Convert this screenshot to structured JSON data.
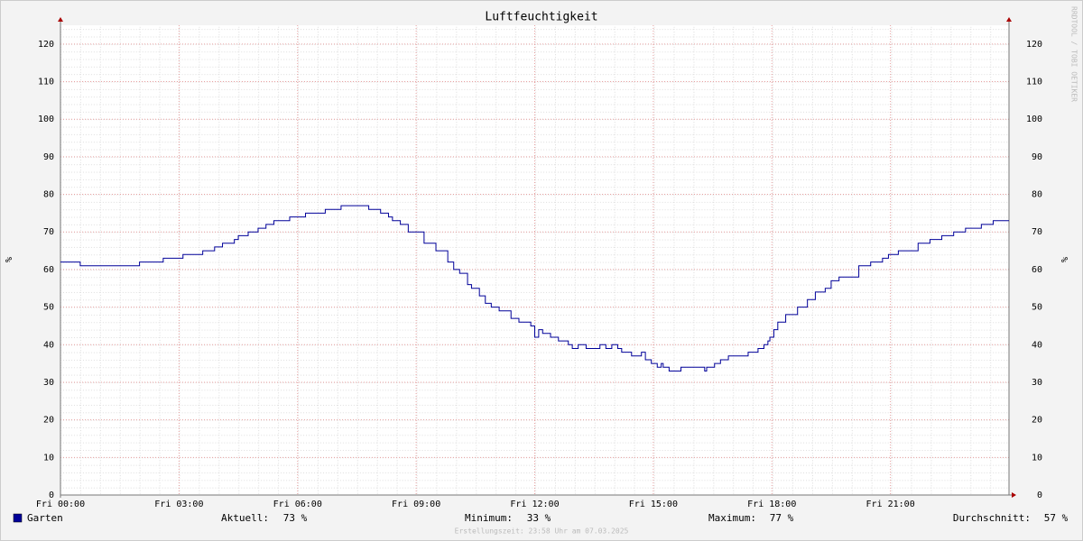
{
  "chart_data": {
    "type": "line",
    "title": "Luftfeuchtigkeit",
    "y_label": "%",
    "watermark": "RRDTOOL / TOBI OETIKER",
    "footer": "Erstellungszeit: 23:58 Uhr am 07.03.2025",
    "series": [
      {
        "name": "Garten",
        "color": "#000099",
        "x": [
          0,
          0.5,
          2.0,
          2.6,
          3.1,
          3.6,
          3.9,
          4.1,
          4.4,
          4.5,
          4.75,
          5.0,
          5.2,
          5.4,
          5.8,
          6.2,
          6.7,
          7.1,
          7.8,
          8.1,
          8.3,
          8.4,
          8.6,
          8.8,
          9.2,
          9.5,
          9.8,
          9.95,
          10.1,
          10.3,
          10.4,
          10.6,
          10.75,
          10.9,
          11.1,
          11.4,
          11.6,
          11.9,
          12.0,
          12.1,
          12.2,
          12.4,
          12.6,
          12.85,
          12.95,
          13.1,
          13.3,
          13.65,
          13.8,
          13.95,
          14.1,
          14.2,
          14.45,
          14.7,
          14.8,
          14.95,
          15.1,
          15.2,
          15.25,
          15.4,
          15.7,
          16.3,
          16.35,
          16.55,
          16.7,
          16.9,
          17.4,
          17.65,
          17.8,
          17.9,
          17.95,
          18.05,
          18.15,
          18.35,
          18.65,
          18.9,
          19.1,
          19.35,
          19.5,
          19.7,
          20.2,
          20.5,
          20.8,
          20.95,
          21.2,
          21.7,
          22.0,
          22.3,
          22.6,
          22.9,
          23.3,
          23.6,
          24
        ],
        "values": [
          62,
          61,
          62,
          63,
          64,
          65,
          66,
          67,
          68,
          69,
          70,
          71,
          72,
          73,
          74,
          75,
          76,
          77,
          76,
          75,
          74,
          73,
          72,
          70,
          67,
          65,
          62,
          60,
          59,
          56,
          55,
          53,
          51,
          50,
          49,
          47,
          46,
          45,
          42,
          44,
          43,
          42,
          41,
          40,
          39,
          40,
          39,
          40,
          39,
          40,
          39,
          38,
          37,
          38,
          36,
          35,
          34,
          35,
          34,
          33,
          34,
          33,
          34,
          35,
          36,
          37,
          38,
          39,
          40,
          41,
          42,
          44,
          46,
          48,
          50,
          52,
          54,
          55,
          57,
          58,
          61,
          62,
          63,
          64,
          65,
          67,
          68,
          69,
          70,
          71,
          72,
          73,
          73
        ]
      }
    ],
    "stats": [
      {
        "label": "Aktuell:",
        "value": "73 %"
      },
      {
        "label": "Minimum:",
        "value": "33 %"
      },
      {
        "label": "Maximum:",
        "value": "77 %"
      },
      {
        "label": "Durchschnitt:",
        "value": "57 %"
      }
    ],
    "xlim": [
      0,
      24
    ],
    "xticks": [
      {
        "value": 0,
        "label": "Fri 00:00"
      },
      {
        "value": 3,
        "label": "Fri 03:00"
      },
      {
        "value": 6,
        "label": "Fri 06:00"
      },
      {
        "value": 9,
        "label": "Fri 09:00"
      },
      {
        "value": 12,
        "label": "Fri 12:00"
      },
      {
        "value": 15,
        "label": "Fri 15:00"
      },
      {
        "value": 18,
        "label": "Fri 18:00"
      },
      {
        "value": 21,
        "label": "Fri 21:00"
      }
    ],
    "ylim": [
      0,
      125
    ],
    "yticks": [
      0,
      10,
      20,
      30,
      40,
      50,
      60,
      70,
      80,
      90,
      100,
      110,
      120
    ],
    "grid": true
  }
}
